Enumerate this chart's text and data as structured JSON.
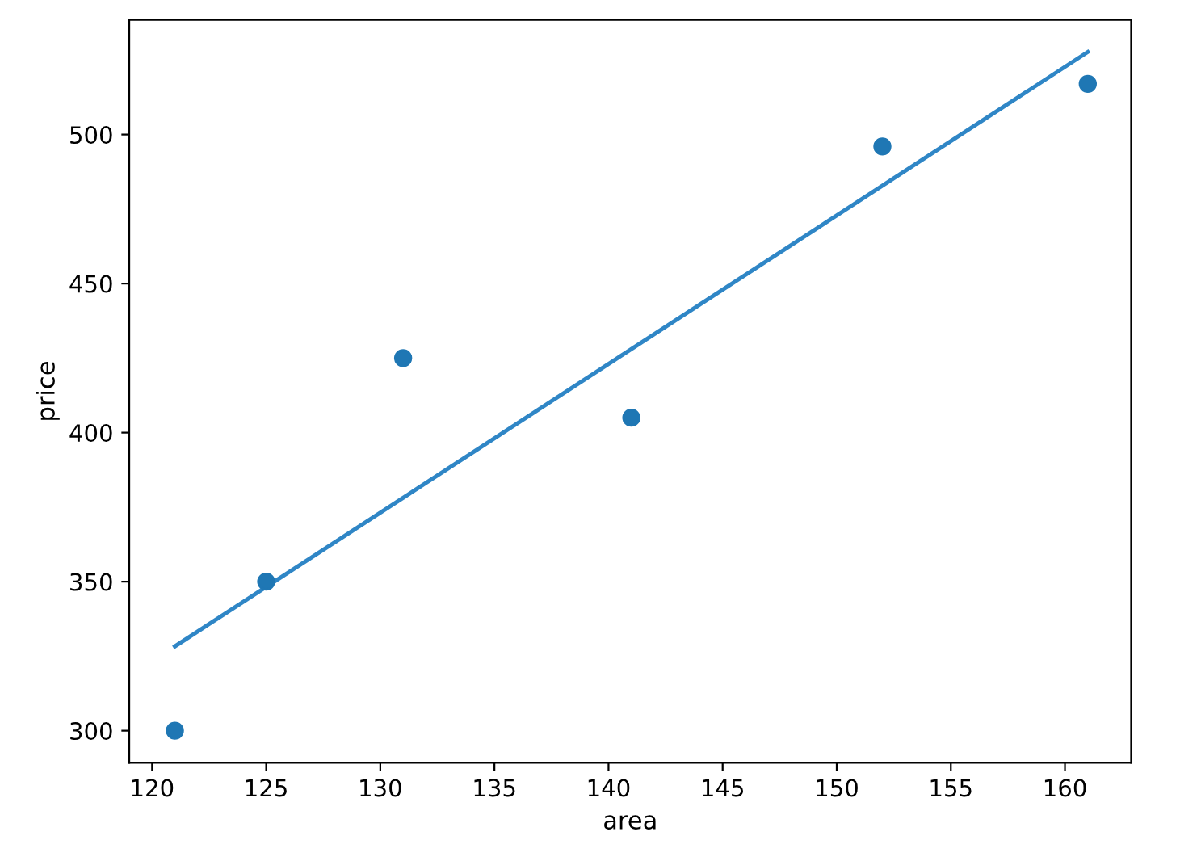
{
  "chart_data": {
    "type": "scatter",
    "xlabel": "area",
    "ylabel": "price",
    "x": [
      121,
      125,
      131,
      141,
      152,
      161
    ],
    "series": [
      {
        "color": "#1f77b4",
        "values": [
          300,
          350,
          425,
          405,
          496,
          517
        ]
      },
      {
        "type": "line",
        "color": "#2f86c6",
        "x": [
          121,
          161
        ],
        "values": [
          328.3,
          527.7
        ]
      }
    ],
    "xlim": [
      119,
      162.9
    ],
    "xticks": [
      120,
      125,
      130,
      135,
      140,
      145,
      150,
      155,
      160
    ],
    "ylim": [
      289.2,
      538.5
    ],
    "yticks": [
      300,
      350,
      400,
      450,
      500
    ],
    "grid": false
  }
}
